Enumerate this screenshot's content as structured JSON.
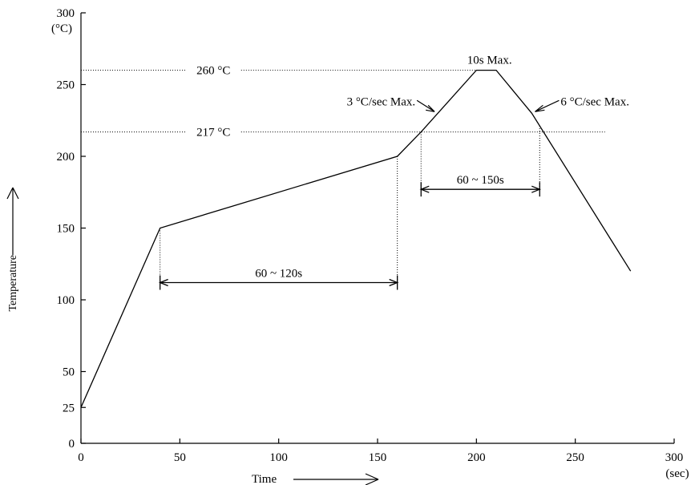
{
  "chart_data": {
    "type": "line",
    "title": "",
    "xlabel": "Time",
    "ylabel": "Temperature",
    "x_unit": "(sec)",
    "y_unit": "(°C)",
    "xlim": [
      0,
      300
    ],
    "ylim": [
      0,
      300
    ],
    "x_ticks": [
      0,
      50,
      100,
      150,
      200,
      250,
      300
    ],
    "y_ticks": [
      0,
      25,
      50,
      100,
      150,
      200,
      250,
      300
    ],
    "grid": false,
    "legend": "none",
    "series": [
      {
        "x": [
          0,
          40,
          160,
          172,
          200,
          210,
          228,
          278
        ],
        "y": [
          25,
          150,
          200,
          217,
          260,
          260,
          230,
          120
        ]
      }
    ],
    "reference_lines": [
      {
        "y": 260,
        "label": "260 °C"
      },
      {
        "y": 217,
        "label": "217 °C"
      }
    ],
    "intervals": [
      {
        "x0": 40,
        "x1": 160,
        "label": "60 ~ 120s"
      },
      {
        "x0": 172,
        "x1": 232,
        "label": "60 ~ 150s"
      }
    ],
    "annotations": [
      {
        "text": "10s Max."
      },
      {
        "text": "3 °C/sec Max."
      },
      {
        "text": "6 °C/sec Max."
      }
    ]
  }
}
